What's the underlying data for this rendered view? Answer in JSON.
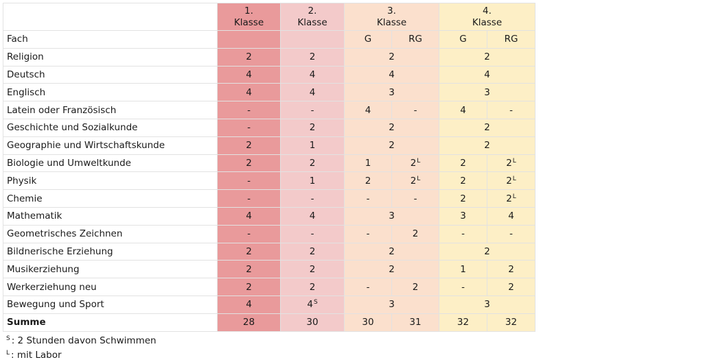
{
  "header": {
    "k1": [
      "1.",
      "Klasse"
    ],
    "k2": [
      "2.",
      "Klasse"
    ],
    "k3": [
      "3.",
      "Klasse"
    ],
    "k4": [
      "4.",
      "Klasse"
    ]
  },
  "fach_label": "Fach",
  "sub_labels": {
    "g": "G",
    "rg": "RG"
  },
  "rows": [
    {
      "name": "Religion",
      "k1": "2",
      "k2": "2",
      "k3": "2",
      "k4": "2"
    },
    {
      "name": "Deutsch",
      "k1": "4",
      "k2": "4",
      "k3": "4",
      "k4": "4"
    },
    {
      "name": "Englisch",
      "k1": "4",
      "k2": "4",
      "k3": "3",
      "k4": "3"
    },
    {
      "name": "Latein oder Französisch",
      "k1": "-",
      "k2": "-",
      "k3g": "4",
      "k3rg": "-",
      "k4g": "4",
      "k4rg": "-"
    },
    {
      "name": "Geschichte und Sozialkunde",
      "k1": "-",
      "k2": "2",
      "k3": "2",
      "k4": "2"
    },
    {
      "name": "Geographie und Wirtschaftskunde",
      "k1": "2",
      "k2": "1",
      "k3": "2",
      "k4": "2"
    },
    {
      "name": "Biologie und Umweltkunde",
      "k1": "2",
      "k2": "2",
      "k3g": "1",
      "k3rg": "2",
      "k3rg_sup": "L",
      "k4g": "2",
      "k4rg": "2",
      "k4rg_sup": "L"
    },
    {
      "name": "Physik",
      "k1": "-",
      "k2": "1",
      "k3g": "2",
      "k3rg": "2",
      "k3rg_sup": "L",
      "k4g": "2",
      "k4rg": "2",
      "k4rg_sup": "L"
    },
    {
      "name": "Chemie",
      "k1": "-",
      "k2": "-",
      "k3g": "-",
      "k3rg": "-",
      "k4g": "2",
      "k4rg": "2",
      "k4rg_sup": "L"
    },
    {
      "name": "Mathematik",
      "k1": "4",
      "k2": "4",
      "k3": "3",
      "k4g": "3",
      "k4rg": "4"
    },
    {
      "name": "Geometrisches Zeichnen",
      "k1": "-",
      "k2": "-",
      "k3g": "-",
      "k3rg": "2",
      "k4g": "-",
      "k4rg": "-"
    },
    {
      "name": "Bildnerische Erziehung",
      "k1": "2",
      "k2": "2",
      "k3": "2",
      "k4": "2"
    },
    {
      "name": "Musikerziehung",
      "k1": "2",
      "k2": "2",
      "k3": "2",
      "k4g": "1",
      "k4rg": "2"
    },
    {
      "name": "Werkerziehung neu",
      "k1": "2",
      "k2": "2",
      "k3g": "-",
      "k3rg": "2",
      "k4g": "-",
      "k4rg": "2"
    },
    {
      "name": "Bewegung und Sport",
      "k1": "4",
      "k2": "4",
      "k2_sup": "S",
      "k3": "3",
      "k4": "3"
    }
  ],
  "total": {
    "name": "Summe",
    "k1": "28",
    "k2": "30",
    "k3g": "30",
    "k3rg": "31",
    "k4g": "32",
    "k4rg": "32"
  },
  "legend": [
    {
      "mark": "S",
      "text": ": 2 Stunden davon Schwimmen"
    },
    {
      "mark": "L",
      "text": ": mit Labor"
    }
  ],
  "colors": {
    "klasse_1": "#e99a9b",
    "klasse_2": "#f3caca",
    "klasse_3": "#fbe0cd",
    "klasse_4": "#fdefc6"
  }
}
